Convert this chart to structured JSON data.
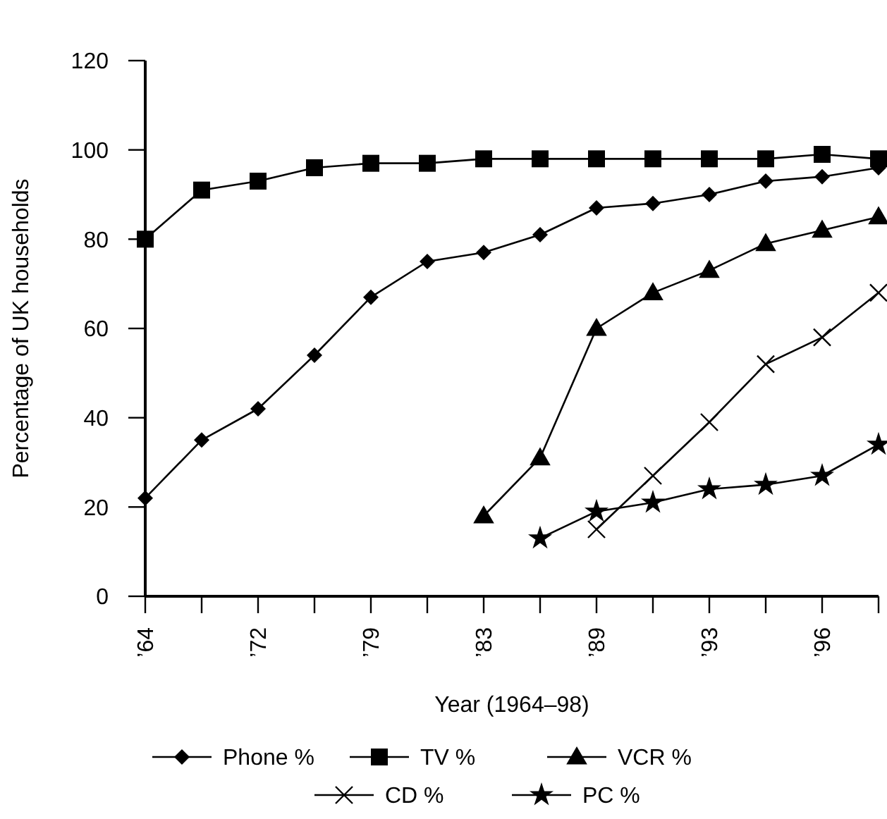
{
  "chart_data": {
    "type": "line",
    "xlabel": "Year (1964–98)",
    "ylabel": "Percentage of UK households",
    "categories": [
      "’64",
      null,
      "’72",
      null,
      "’79",
      null,
      "’83",
      null,
      "’89",
      null,
      "’93",
      null,
      "’96",
      null
    ],
    "ylim": [
      0,
      120
    ],
    "yticks": [
      0,
      20,
      40,
      60,
      80,
      100,
      120
    ],
    "grid": false,
    "legend": "bottom",
    "line_style": "solid",
    "series": [
      {
        "name": "Phone %",
        "color": "#000000",
        "marker": "diamond",
        "values": [
          22,
          35,
          42,
          54,
          67,
          75,
          77,
          81,
          87,
          88,
          90,
          93,
          94,
          96
        ]
      },
      {
        "name": "TV %",
        "color": "#000000",
        "marker": "square",
        "values": [
          80,
          91,
          93,
          96,
          97,
          97,
          98,
          98,
          98,
          98,
          98,
          98,
          99,
          98
        ]
      },
      {
        "name": "VCR %",
        "color": "#000000",
        "marker": "triangle",
        "values": [
          null,
          null,
          null,
          null,
          null,
          null,
          18,
          31,
          60,
          68,
          73,
          79,
          82,
          85
        ]
      },
      {
        "name": "CD %",
        "color": "#000000",
        "marker": "cross",
        "values": [
          null,
          null,
          null,
          null,
          null,
          null,
          null,
          null,
          15,
          27,
          39,
          52,
          58,
          68
        ]
      },
      {
        "name": "PC %",
        "color": "#000000",
        "marker": "star",
        "values": [
          null,
          null,
          null,
          null,
          null,
          null,
          null,
          13,
          19,
          21,
          24,
          25,
          27,
          34
        ]
      }
    ]
  }
}
